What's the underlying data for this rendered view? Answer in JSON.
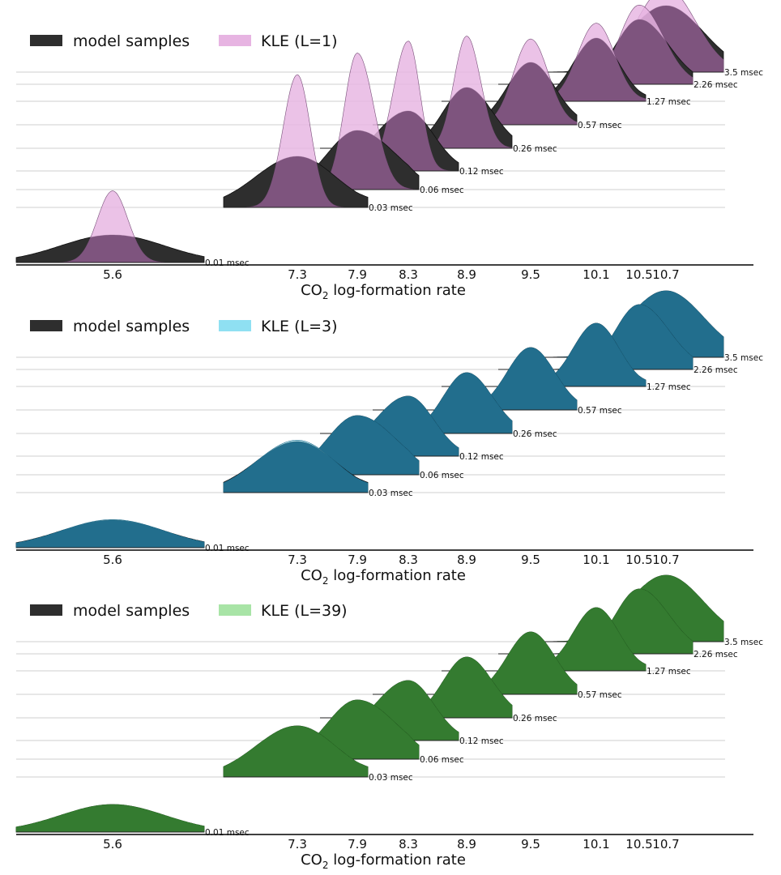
{
  "chart_data": [
    {
      "type": "ridgeline",
      "legend": [
        {
          "label": "model samples",
          "color": "#2e2e2e"
        },
        {
          "label": "KLE (L=1)",
          "color": "#e7b4e2"
        }
      ],
      "model_color": "#2e2e2e",
      "kle_color": "#e7b4e2",
      "overlap_color": "#774e78",
      "xlabel": "CO",
      "xlabel_sub": "2",
      "xlabel_rest": " log-formation rate",
      "xticks": [
        "5.6",
        "7.3",
        "7.9",
        "8.3",
        "8.9",
        "9.5",
        "10.1",
        "10.5",
        "10.7"
      ],
      "series": [
        {
          "time": "0.01 msec",
          "mean": 5.6,
          "model_sd": 0.48,
          "kle_sd": 0.14
        },
        {
          "time": "0.03 msec",
          "mean": 7.3,
          "model_sd": 0.38,
          "kle_sd": 0.13
        },
        {
          "time": "0.06 msec",
          "mean": 7.9,
          "model_sd": 0.3,
          "kle_sd": 0.13
        },
        {
          "time": "0.12 msec",
          "mean": 8.3,
          "model_sd": 0.26,
          "kle_sd": 0.12
        },
        {
          "time": "0.26 msec",
          "mean": 8.9,
          "model_sd": 0.24,
          "kle_sd": 0.13
        },
        {
          "time": "0.57 msec",
          "mean": 9.5,
          "model_sd": 0.22,
          "kle_sd": 0.16
        },
        {
          "time": "1.27 msec",
          "mean": 10.1,
          "model_sd": 0.21,
          "kle_sd": 0.17
        },
        {
          "time": "2.26 msec",
          "mean": 10.5,
          "model_sd": 0.22,
          "kle_sd": 0.18
        },
        {
          "time": "3.5 msec",
          "mean": 10.7,
          "model_sd": 0.28,
          "kle_sd": 0.22
        }
      ]
    },
    {
      "type": "ridgeline",
      "legend": [
        {
          "label": "model samples",
          "color": "#2e2e2e"
        },
        {
          "label": "KLE (L=3)",
          "color": "#8fe0f2"
        }
      ],
      "model_color": "#2e2e2e",
      "kle_color": "#8fe0f2",
      "overlap_color": "#1c6b8c",
      "xlabel": "CO",
      "xlabel_sub": "2",
      "xlabel_rest": " log-formation rate",
      "xticks": [
        "5.6",
        "7.3",
        "7.9",
        "8.3",
        "8.9",
        "9.5",
        "10.1",
        "10.5",
        "10.7"
      ],
      "series": [
        {
          "time": "0.01 msec",
          "mean": 5.6,
          "model_sd": 0.48,
          "kle_sd": 0.47
        },
        {
          "time": "0.03 msec",
          "mean": 7.3,
          "model_sd": 0.38,
          "kle_sd": 0.37
        },
        {
          "time": "0.06 msec",
          "mean": 7.9,
          "model_sd": 0.3,
          "kle_sd": 0.3
        },
        {
          "time": "0.12 msec",
          "mean": 8.3,
          "model_sd": 0.26,
          "kle_sd": 0.26
        },
        {
          "time": "0.26 msec",
          "mean": 8.9,
          "model_sd": 0.24,
          "kle_sd": 0.24
        },
        {
          "time": "0.57 msec",
          "mean": 9.5,
          "model_sd": 0.22,
          "kle_sd": 0.22
        },
        {
          "time": "1.27 msec",
          "mean": 10.1,
          "model_sd": 0.21,
          "kle_sd": 0.21
        },
        {
          "time": "2.26 msec",
          "mean": 10.5,
          "model_sd": 0.22,
          "kle_sd": 0.22
        },
        {
          "time": "3.5 msec",
          "mean": 10.7,
          "model_sd": 0.28,
          "kle_sd": 0.28
        }
      ]
    },
    {
      "type": "ridgeline",
      "legend": [
        {
          "label": "model samples",
          "color": "#2e2e2e"
        },
        {
          "label": "KLE (L=39)",
          "color": "#a8e4a6"
        }
      ],
      "model_color": "#2e2e2e",
      "kle_color": "#a8e4a6",
      "overlap_color": "#2f7a2a",
      "xlabel": "CO",
      "xlabel_sub": "2",
      "xlabel_rest": " log-formation rate",
      "xticks": [
        "5.6",
        "7.3",
        "7.9",
        "8.3",
        "8.9",
        "9.5",
        "10.1",
        "10.5",
        "10.7"
      ],
      "series": [
        {
          "time": "0.01 msec",
          "mean": 5.6,
          "model_sd": 0.48,
          "kle_sd": 0.48
        },
        {
          "time": "0.03 msec",
          "mean": 7.3,
          "model_sd": 0.38,
          "kle_sd": 0.38
        },
        {
          "time": "0.06 msec",
          "mean": 7.9,
          "model_sd": 0.3,
          "kle_sd": 0.3
        },
        {
          "time": "0.12 msec",
          "mean": 8.3,
          "model_sd": 0.26,
          "kle_sd": 0.26
        },
        {
          "time": "0.26 msec",
          "mean": 8.9,
          "model_sd": 0.24,
          "kle_sd": 0.24
        },
        {
          "time": "0.57 msec",
          "mean": 9.5,
          "model_sd": 0.22,
          "kle_sd": 0.22
        },
        {
          "time": "1.27 msec",
          "mean": 10.1,
          "model_sd": 0.21,
          "kle_sd": 0.21
        },
        {
          "time": "2.26 msec",
          "mean": 10.5,
          "model_sd": 0.22,
          "kle_sd": 0.22
        },
        {
          "time": "3.5 msec",
          "mean": 10.7,
          "model_sd": 0.28,
          "kle_sd": 0.28
        }
      ]
    }
  ]
}
